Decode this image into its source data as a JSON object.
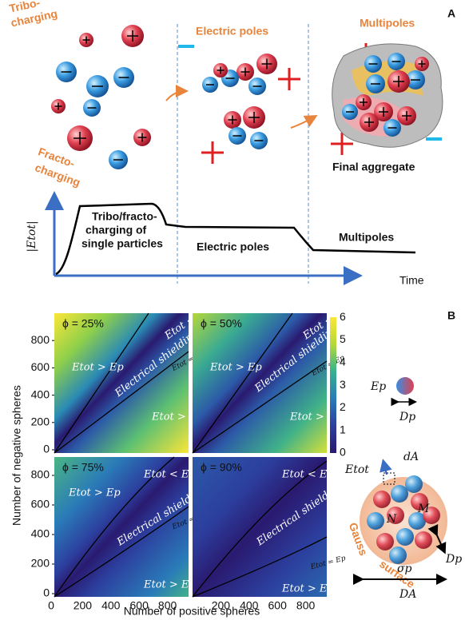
{
  "panel_a": {
    "label": "A",
    "tribo": [
      "Tribo-",
      "charging"
    ],
    "fracto": [
      "Fracto-",
      "charging"
    ],
    "electric_poles": "Electric poles",
    "multipoles": "Multipoles",
    "final_aggregate": "Final aggregate",
    "graph": {
      "y_label": "|Etot|",
      "x_label": "Time",
      "phases": [
        [
          "Tribo/fracto-",
          "charging of",
          "single particles"
        ],
        [
          "Electric poles"
        ],
        [
          "Multipoles"
        ]
      ]
    }
  },
  "panel_b": {
    "label": "B",
    "x_label": "Number of positive spheres",
    "y_label": "Number of negative spheres",
    "colorbar_ticks": [
      0,
      1,
      2,
      3,
      4,
      5,
      6
    ],
    "plots": [
      {
        "phi": "ϕ = 25%",
        "regions": [
          "Etot > Ep",
          "Etot < Ep",
          "Electrical shielding",
          "Etot = Ep",
          "Etot > Ep"
        ],
        "y_ticks": [
          0,
          200,
          400,
          600,
          800
        ],
        "x_ticks": []
      },
      {
        "phi": "ϕ = 50%",
        "regions": [
          "Etot > Ep",
          "Etot < Ep",
          "Electrical shielding",
          "Etot = Ep",
          "Etot > Ep"
        ],
        "y_ticks": [],
        "x_ticks": []
      },
      {
        "phi": "ϕ = 75%",
        "regions": [
          "Etot > Ep",
          "Etot < Ep",
          "Electrical shielding",
          "Etot = Ep",
          "Etot > Ep"
        ],
        "y_ticks": [
          0,
          200,
          400,
          600,
          800
        ],
        "x_ticks": [
          0,
          200,
          400,
          600,
          800
        ]
      },
      {
        "phi": "ϕ = 90%",
        "regions": [
          "Etot < Ep",
          "Electrical shielding",
          "Etot = Ep",
          "Etot > Ep"
        ],
        "y_ticks": [],
        "x_ticks": [
          200,
          400,
          600,
          800
        ]
      }
    ]
  },
  "schematic": {
    "ep": "Ep",
    "dp": "Dp",
    "etot": "Etot",
    "da": "dA",
    "n": "N",
    "m": "M",
    "gauss": [
      "Gauss",
      "surface"
    ],
    "sigma": "σp",
    "dp_big": "Dp",
    "d_a": "DA"
  }
}
